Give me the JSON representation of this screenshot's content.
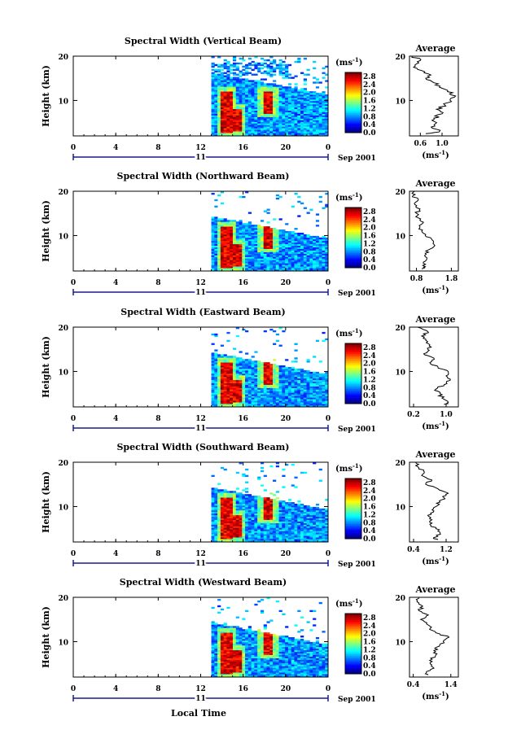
{
  "figure": {
    "xlabel": "Local Time",
    "date_label": "Sep 2001",
    "day_label": "11",
    "height_label": "Height (km)",
    "avg_title": "Average",
    "colorbar_unit": "(ms",
    "colorbar_unit_sup": "-1",
    "colorbar_unit_close": ")",
    "avg_unit": "(ms",
    "avg_unit_sup": "-1",
    "avg_unit_close": ")"
  },
  "chart_data": [
    {
      "type": "heatmap",
      "title": "Spectral Width (Vertical Beam)",
      "xlabel": "Local Time",
      "ylabel": "Height (km)",
      "xlim": [
        0,
        24
      ],
      "ylim": [
        2,
        20
      ],
      "x_ticks": [
        "0",
        "4",
        "8",
        "12",
        "16",
        "20",
        "0"
      ],
      "y_ticks": [
        "20",
        "10"
      ],
      "colorbar": {
        "label": "(ms-1)",
        "ticks": [
          "2.8",
          "2.4",
          "2.0",
          "1.6",
          "1.2",
          "0.8",
          "0.4",
          "0.0"
        ],
        "range": [
          0,
          3.0
        ]
      },
      "data_start_hour": 13,
      "cloud_top_km": 15.5,
      "strong_bands": [
        {
          "hour": 14.3,
          "low": 2.5,
          "high": 12
        },
        {
          "hour": 15.2,
          "low": 3,
          "high": 8
        },
        {
          "hour": 18.2,
          "low": 7,
          "high": 12
        }
      ],
      "upper_gaps": true,
      "average": {
        "title": "Average",
        "xlabel": "(ms-1)",
        "x_ticks": [
          "0.6",
          "1.0"
        ],
        "xlim": [
          0.4,
          1.3
        ],
        "y_ticks": [
          "20",
          "10"
        ],
        "ylim": [
          2,
          20
        ],
        "profile": [
          {
            "h": 2.5,
            "v": 0.7
          },
          {
            "h": 3,
            "v": 0.95
          },
          {
            "h": 4,
            "v": 0.8
          },
          {
            "h": 5,
            "v": 0.9
          },
          {
            "h": 6,
            "v": 0.85
          },
          {
            "h": 7,
            "v": 1.0
          },
          {
            "h": 8,
            "v": 0.9
          },
          {
            "h": 9,
            "v": 1.05
          },
          {
            "h": 10,
            "v": 1.15
          },
          {
            "h": 11,
            "v": 1.25
          },
          {
            "h": 12,
            "v": 1.1
          },
          {
            "h": 13,
            "v": 0.95
          },
          {
            "h": 14,
            "v": 0.85
          },
          {
            "h": 15,
            "v": 0.7
          },
          {
            "h": 16,
            "v": 0.75
          },
          {
            "h": 17,
            "v": 0.55
          },
          {
            "h": 18,
            "v": 0.5
          },
          {
            "h": 19,
            "v": 0.6
          },
          {
            "h": 20,
            "v": 0.45
          }
        ]
      }
    },
    {
      "type": "heatmap",
      "title": "Spectral Width (Northward Beam)",
      "xlabel": "Local Time",
      "ylabel": "Height (km)",
      "xlim": [
        0,
        24
      ],
      "ylim": [
        2,
        20
      ],
      "x_ticks": [
        "0",
        "4",
        "8",
        "12",
        "16",
        "20",
        "0"
      ],
      "y_ticks": [
        "20",
        "10"
      ],
      "colorbar": {
        "label": "(ms-1)",
        "ticks": [
          "2.8",
          "2.4",
          "2.0",
          "1.6",
          "1.2",
          "0.8",
          "0.4",
          "0.0"
        ],
        "range": [
          0,
          3.0
        ]
      },
      "data_start_hour": 13,
      "cloud_top_km": 13.5,
      "strong_bands": [
        {
          "hour": 14.3,
          "low": 2.5,
          "high": 12
        },
        {
          "hour": 15.2,
          "low": 3,
          "high": 8
        },
        {
          "hour": 18.2,
          "low": 7,
          "high": 12
        }
      ],
      "upper_gaps": false,
      "average": {
        "title": "Average",
        "xlabel": "(ms-1)",
        "x_ticks": [
          "0.8",
          "1.8"
        ],
        "xlim": [
          0.6,
          2.0
        ],
        "y_ticks": [
          "20",
          "10"
        ],
        "ylim": [
          2,
          20
        ],
        "profile": [
          {
            "h": 2.5,
            "v": 0.95
          },
          {
            "h": 3,
            "v": 1.05
          },
          {
            "h": 4,
            "v": 1.0
          },
          {
            "h": 5,
            "v": 1.1
          },
          {
            "h": 6,
            "v": 1.05
          },
          {
            "h": 7,
            "v": 1.2
          },
          {
            "h": 8,
            "v": 1.3
          },
          {
            "h": 9,
            "v": 1.25
          },
          {
            "h": 10,
            "v": 1.05
          },
          {
            "h": 11,
            "v": 0.95
          },
          {
            "h": 12,
            "v": 0.9
          },
          {
            "h": 13,
            "v": 1.0
          },
          {
            "h": 14,
            "v": 0.85
          },
          {
            "h": 15,
            "v": 0.8
          },
          {
            "h": 16,
            "v": 0.9
          },
          {
            "h": 17,
            "v": 0.75
          },
          {
            "h": 18,
            "v": 0.85
          },
          {
            "h": 19,
            "v": 0.7
          },
          {
            "h": 20,
            "v": 0.75
          }
        ]
      }
    },
    {
      "type": "heatmap",
      "title": "Spectral Width (Eastward Beam)",
      "xlabel": "Local Time",
      "ylabel": "Height (km)",
      "xlim": [
        0,
        24
      ],
      "ylim": [
        2,
        20
      ],
      "x_ticks": [
        "0",
        "4",
        "8",
        "12",
        "16",
        "20",
        "0"
      ],
      "y_ticks": [
        "20",
        "10"
      ],
      "colorbar": {
        "label": "(ms-1)",
        "ticks": [
          "2.8",
          "2.4",
          "2.0",
          "1.6",
          "1.2",
          "0.8",
          "0.4",
          "0.0"
        ],
        "range": [
          0,
          3.0
        ]
      },
      "data_start_hour": 13,
      "cloud_top_km": 13.5,
      "strong_bands": [
        {
          "hour": 14.3,
          "low": 2.5,
          "high": 12
        },
        {
          "hour": 15.2,
          "low": 3,
          "high": 8
        },
        {
          "hour": 18.2,
          "low": 7,
          "high": 12
        }
      ],
      "upper_gaps": false,
      "average": {
        "title": "Average",
        "xlabel": "(ms-1)",
        "x_ticks": [
          "0.2",
          "1.0"
        ],
        "xlim": [
          0.1,
          1.3
        ],
        "y_ticks": [
          "20",
          "10"
        ],
        "ylim": [
          2,
          20
        ],
        "profile": [
          {
            "h": 2.5,
            "v": 0.95
          },
          {
            "h": 3,
            "v": 1.05
          },
          {
            "h": 4,
            "v": 0.9
          },
          {
            "h": 5,
            "v": 0.85
          },
          {
            "h": 6,
            "v": 0.75
          },
          {
            "h": 7,
            "v": 0.95
          },
          {
            "h": 8,
            "v": 1.1
          },
          {
            "h": 9,
            "v": 1.0
          },
          {
            "h": 10,
            "v": 1.05
          },
          {
            "h": 11,
            "v": 0.8
          },
          {
            "h": 12,
            "v": 0.6
          },
          {
            "h": 13,
            "v": 0.7
          },
          {
            "h": 14,
            "v": 0.45
          },
          {
            "h": 15,
            "v": 0.55
          },
          {
            "h": 16,
            "v": 0.6
          },
          {
            "h": 17,
            "v": 0.5
          },
          {
            "h": 18,
            "v": 0.4
          },
          {
            "h": 19,
            "v": 0.55
          },
          {
            "h": 20,
            "v": 0.3
          }
        ]
      }
    },
    {
      "type": "heatmap",
      "title": "Spectral Width (Southward Beam)",
      "xlabel": "Local Time",
      "ylabel": "Height (km)",
      "xlim": [
        0,
        24
      ],
      "ylim": [
        2,
        20
      ],
      "x_ticks": [
        "0",
        "4",
        "8",
        "12",
        "16",
        "20",
        "0"
      ],
      "y_ticks": [
        "20",
        "10"
      ],
      "colorbar": {
        "label": "(ms-1)",
        "ticks": [
          "2.8",
          "2.4",
          "2.0",
          "1.6",
          "1.2",
          "0.8",
          "0.4",
          "0.0"
        ],
        "range": [
          0,
          3.0
        ]
      },
      "data_start_hour": 13,
      "cloud_top_km": 13.5,
      "strong_bands": [
        {
          "hour": 14.3,
          "low": 2.5,
          "high": 12
        },
        {
          "hour": 15.2,
          "low": 3,
          "high": 8
        },
        {
          "hour": 18.2,
          "low": 7,
          "high": 12
        }
      ],
      "upper_gaps": false,
      "average": {
        "title": "Average",
        "xlabel": "(ms-1)",
        "x_ticks": [
          "0.4",
          "1.2"
        ],
        "xlim": [
          0.3,
          1.5
        ],
        "y_ticks": [
          "20",
          "10"
        ],
        "ylim": [
          2,
          20
        ],
        "profile": [
          {
            "h": 2.5,
            "v": 1.0
          },
          {
            "h": 3,
            "v": 0.9
          },
          {
            "h": 4,
            "v": 1.05
          },
          {
            "h": 5,
            "v": 0.95
          },
          {
            "h": 6,
            "v": 0.8
          },
          {
            "h": 7,
            "v": 0.85
          },
          {
            "h": 8,
            "v": 0.75
          },
          {
            "h": 9,
            "v": 0.9
          },
          {
            "h": 10,
            "v": 0.95
          },
          {
            "h": 11,
            "v": 1.05
          },
          {
            "h": 12,
            "v": 1.15
          },
          {
            "h": 13,
            "v": 1.25
          },
          {
            "h": 14,
            "v": 1.0
          },
          {
            "h": 15,
            "v": 0.7
          },
          {
            "h": 16,
            "v": 0.85
          },
          {
            "h": 17,
            "v": 0.6
          },
          {
            "h": 18,
            "v": 0.65
          },
          {
            "h": 19,
            "v": 0.5
          },
          {
            "h": 20,
            "v": 0.45
          }
        ]
      }
    },
    {
      "type": "heatmap",
      "title": "Spectral Width (Westward Beam)",
      "xlabel": "Local Time",
      "ylabel": "Height (km)",
      "xlim": [
        0,
        24
      ],
      "ylim": [
        2,
        20
      ],
      "x_ticks": [
        "0",
        "4",
        "8",
        "12",
        "16",
        "20",
        "0"
      ],
      "y_ticks": [
        "20",
        "10"
      ],
      "colorbar": {
        "label": "(ms-1)",
        "ticks": [
          "2.8",
          "2.4",
          "2.0",
          "1.6",
          "1.2",
          "0.8",
          "0.4",
          "0.0"
        ],
        "range": [
          0,
          3.0
        ]
      },
      "data_start_hour": 13,
      "cloud_top_km": 13.5,
      "strong_bands": [
        {
          "hour": 14.3,
          "low": 2.5,
          "high": 12
        },
        {
          "hour": 15.2,
          "low": 3,
          "high": 8
        },
        {
          "hour": 18.2,
          "low": 7,
          "high": 12
        }
      ],
      "upper_gaps": false,
      "average": {
        "title": "Average",
        "xlabel": "(ms-1)",
        "x_ticks": [
          "0.4",
          "1.4"
        ],
        "xlim": [
          0.3,
          1.6
        ],
        "y_ticks": [
          "20",
          "10"
        ],
        "ylim": [
          2,
          20
        ],
        "profile": [
          {
            "h": 2.5,
            "v": 0.8
          },
          {
            "h": 3,
            "v": 0.75
          },
          {
            "h": 4,
            "v": 0.95
          },
          {
            "h": 5,
            "v": 0.85
          },
          {
            "h": 6,
            "v": 0.9
          },
          {
            "h": 7,
            "v": 1.0
          },
          {
            "h": 8,
            "v": 0.95
          },
          {
            "h": 9,
            "v": 1.1
          },
          {
            "h": 10,
            "v": 1.2
          },
          {
            "h": 11,
            "v": 1.35
          },
          {
            "h": 12,
            "v": 1.0
          },
          {
            "h": 13,
            "v": 0.85
          },
          {
            "h": 14,
            "v": 0.75
          },
          {
            "h": 15,
            "v": 0.6
          },
          {
            "h": 16,
            "v": 0.8
          },
          {
            "h": 17,
            "v": 0.55
          },
          {
            "h": 18,
            "v": 0.65
          },
          {
            "h": 19,
            "v": 0.5
          },
          {
            "h": 20,
            "v": 0.55
          }
        ]
      }
    }
  ]
}
